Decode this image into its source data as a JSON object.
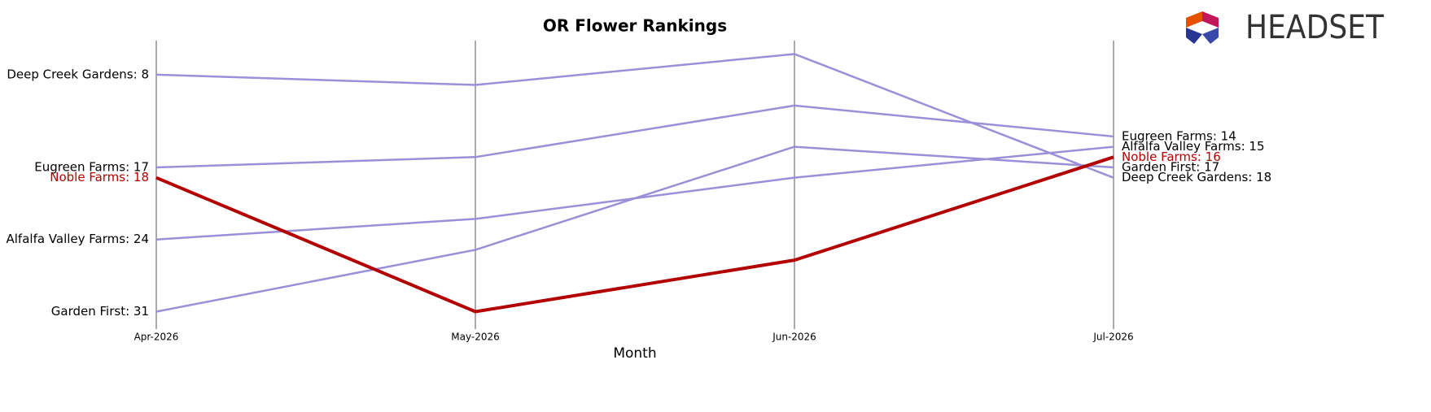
{
  "brand": "HEADSET",
  "chart_data": {
    "type": "bump",
    "title": "OR Flower Rankings",
    "x_label": "Month",
    "categories": [
      "Apr-2026",
      "May-2026",
      "Jun-2026",
      "Jul-2026"
    ],
    "ylim": [
      4.7,
      32.3
    ],
    "invert_y": true,
    "grid": true,
    "series": [
      {
        "color": "#9b8fd8",
        "highlight": false,
        "values": [
          8,
          9,
          6,
          18
        ],
        "value_labels": [
          "Deep Creek Gardens: 8",
          null,
          null,
          "Deep Creek Gardens: 18"
        ]
      },
      {
        "color": "#9b8fd8",
        "highlight": false,
        "values": [
          17,
          16,
          11,
          14
        ],
        "value_labels": [
          "Eugreen Farms: 17",
          null,
          null,
          "Eugreen Farms: 14"
        ]
      },
      {
        "color": "#9b8fd8",
        "highlight": false,
        "values": [
          24,
          22,
          18,
          15
        ],
        "value_labels": [
          "Alfalfa Valley Farms: 24",
          null,
          null,
          "Alfalfa Valley Farms: 15"
        ]
      },
      {
        "color": "#9b8fd8",
        "highlight": false,
        "values": [
          31,
          25,
          15,
          17
        ],
        "value_labels": [
          "Garden First: 31",
          null,
          null,
          "Garden First: 17"
        ]
      },
      {
        "color": "#b30000",
        "highlight": true,
        "values": [
          18,
          31,
          26,
          16
        ],
        "value_labels": [
          "Noble Farms: 18",
          null,
          null,
          "Noble Farms: 16"
        ]
      }
    ]
  }
}
